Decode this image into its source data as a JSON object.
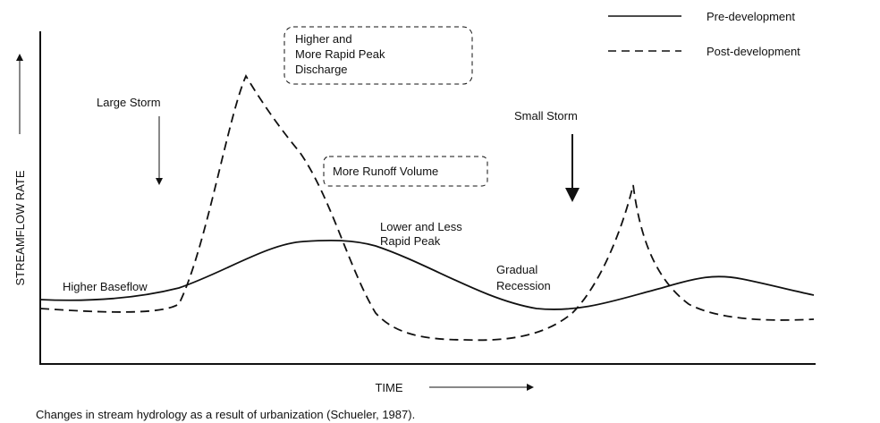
{
  "legend": {
    "items": [
      "Pre-development",
      "Post-development"
    ]
  },
  "axes": {
    "y_label": "STREAMFLOW RATE",
    "x_label": "TIME"
  },
  "annotations": {
    "peak_box": [
      "Higher and",
      "More Rapid Peak",
      "Discharge"
    ],
    "large_storm": "Large Storm",
    "small_storm": "Small Storm",
    "runoff_box": "More Runoff Volume",
    "lower_peak": [
      "Lower and Less",
      "Rapid Peak"
    ],
    "recession": [
      "Gradual",
      "Recession"
    ],
    "baseflow": "Higher Baseflow"
  },
  "caption": "Changes in stream hydrology as a result of urbanization (Schueler, 1987)."
}
